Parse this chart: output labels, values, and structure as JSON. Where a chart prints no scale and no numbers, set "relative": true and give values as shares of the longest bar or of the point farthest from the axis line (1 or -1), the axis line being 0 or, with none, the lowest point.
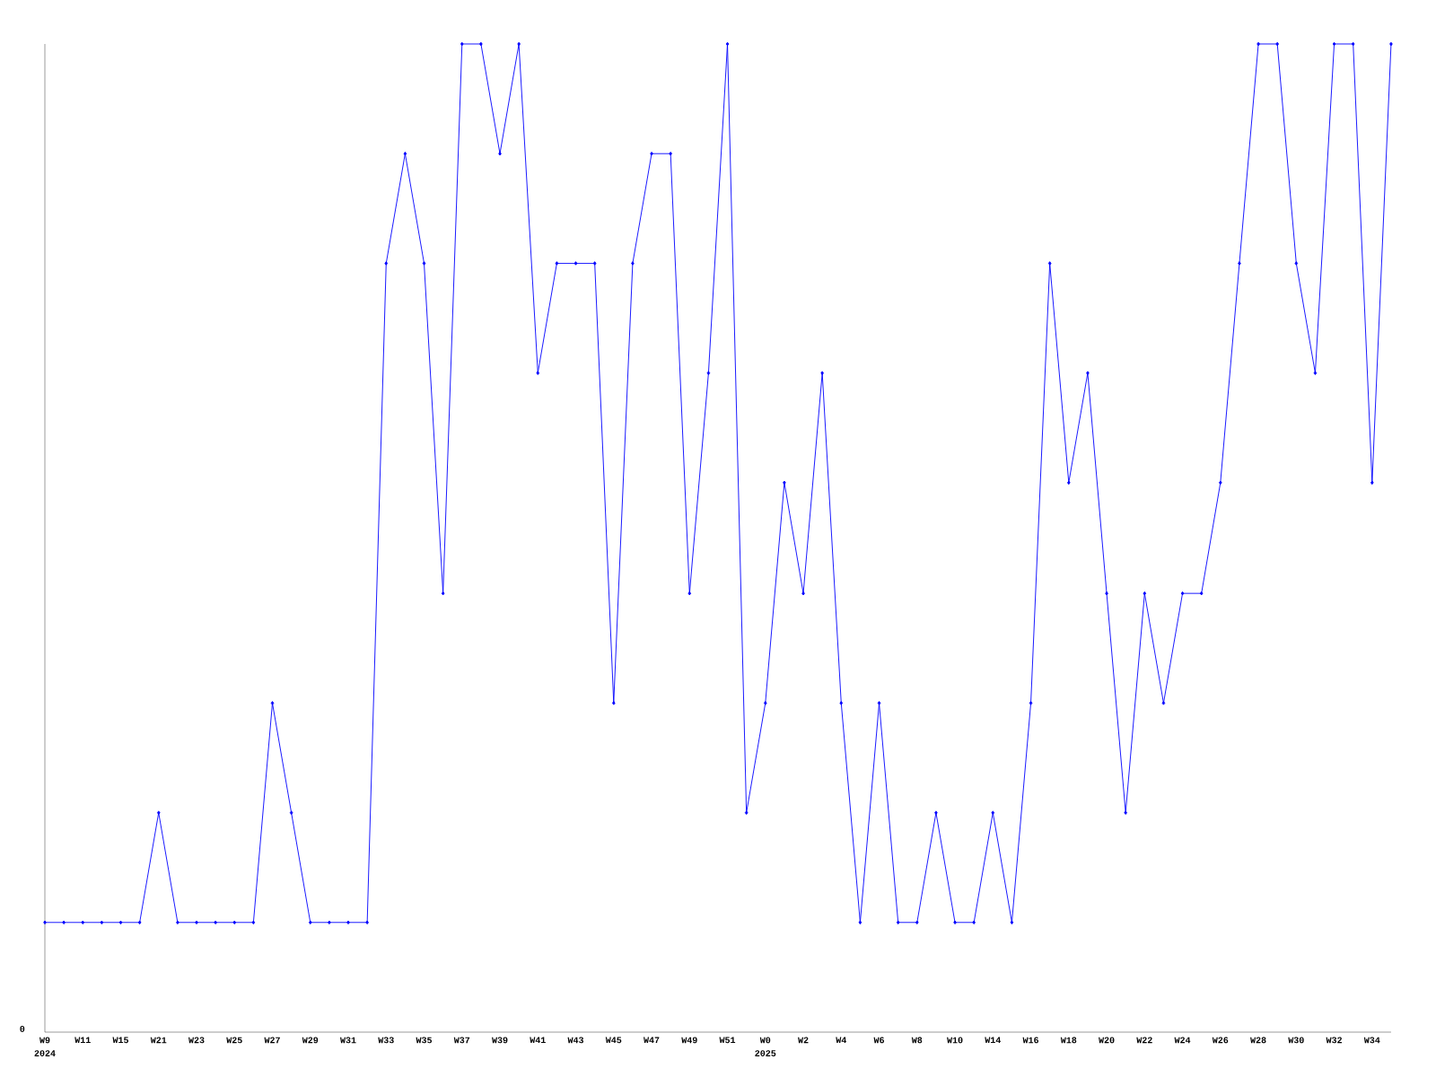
{
  "chart_data": {
    "type": "line",
    "relative": true,
    "color": "#0000ff",
    "marker": "diamond",
    "line_style": "solid",
    "grid": false,
    "categories": [
      "W9",
      null,
      "W11",
      null,
      "W15",
      null,
      "W21",
      null,
      "W23",
      null,
      "W25",
      null,
      "W27",
      null,
      "W29",
      null,
      "W31",
      null,
      "W33",
      null,
      "W35",
      null,
      "W37",
      null,
      "W39",
      null,
      "W41",
      null,
      "W43",
      null,
      "W45",
      null,
      "W47",
      null,
      "W49",
      null,
      "W51",
      null,
      "W0",
      null,
      "W2",
      null,
      "W4",
      null,
      "W6",
      null,
      "W8",
      null,
      "W10",
      null,
      "W14",
      null,
      "W16",
      null,
      "W18",
      null,
      "W20",
      null,
      "W22",
      null,
      "W24",
      null,
      "W26",
      null,
      "W28",
      null,
      "W30",
      null,
      "W32",
      null,
      "W34",
      null
    ],
    "values": [
      0.111,
      0.111,
      0.111,
      0.111,
      0.111,
      0.111,
      0.222,
      0.111,
      0.111,
      0.111,
      0.111,
      0.111,
      0.333,
      0.222,
      0.111,
      0.111,
      0.111,
      0.111,
      0.778,
      0.889,
      0.778,
      0.444,
      1,
      1,
      0.889,
      1,
      0.667,
      0.778,
      0.778,
      0.778,
      0.333,
      0.778,
      0.889,
      0.889,
      0.444,
      0.667,
      1,
      0.222,
      0.333,
      0.556,
      0.444,
      0.667,
      0.333,
      0.111,
      0.333,
      0.111,
      0.111,
      0.222,
      0.111,
      0.111,
      0.222,
      0.111,
      0.333,
      0.778,
      0.556,
      0.667,
      0.444,
      0.222,
      0.444,
      0.333,
      0.444,
      0.444,
      0.556,
      0.778,
      1,
      1,
      0.778,
      0.667,
      1,
      1,
      0.556,
      1
    ],
    "annotations": [
      "0",
      "2024",
      "2025"
    ]
  }
}
